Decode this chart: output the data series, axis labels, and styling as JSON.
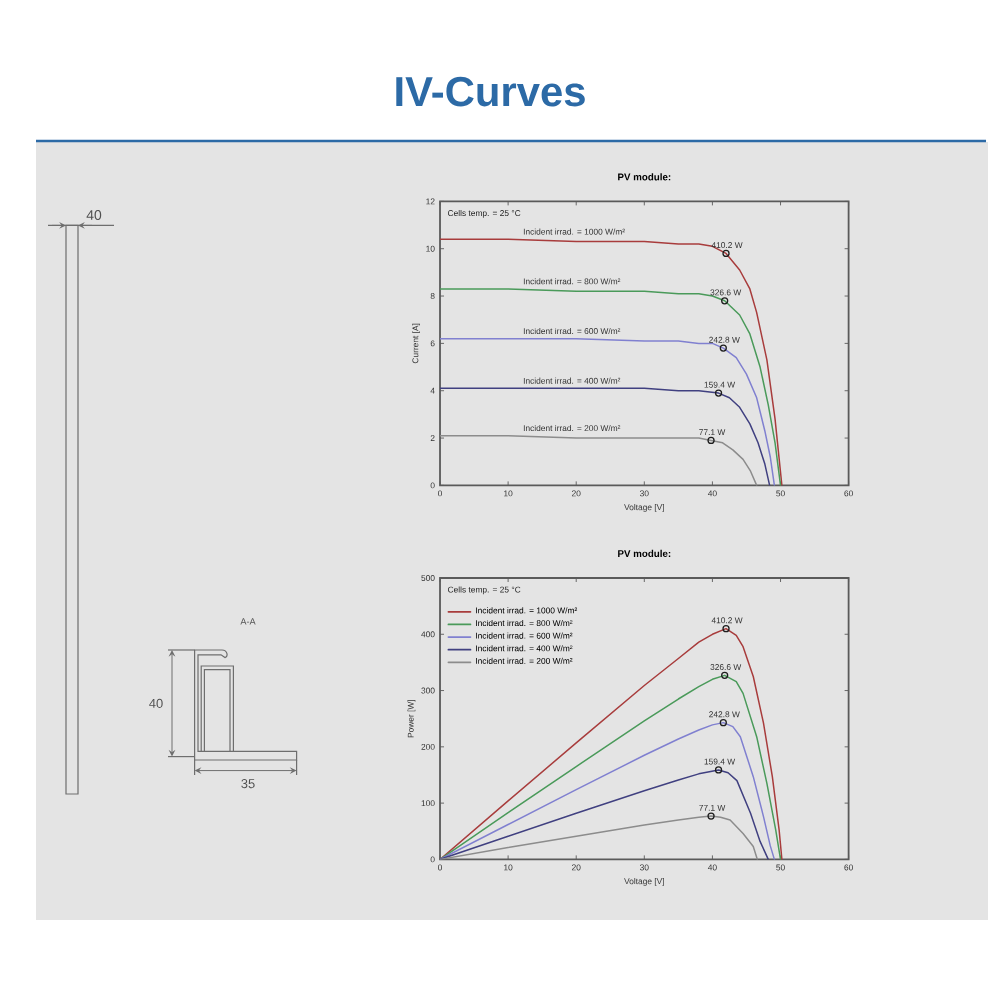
{
  "chart_data": [
    {
      "type": "other",
      "title": "IV-Curves",
      "annotations": [
        "40",
        "A-A",
        "40",
        "35"
      ]
    },
    {
      "type": "line",
      "title": "PV module:",
      "xlabel": "Voltage [V]",
      "ylabel": "Current [A]",
      "xlim": [
        0,
        60
      ],
      "xticks": [
        0,
        10,
        20,
        30,
        40,
        50,
        60
      ],
      "ylim": [
        0,
        12
      ],
      "yticks": [
        0,
        2,
        4,
        6,
        8,
        10,
        12
      ],
      "annotations": [
        "Cells temp. = 25 °C",
        {
          "text": "410.2 W",
          "x": 42.0,
          "y": 9.8
        },
        {
          "text": "326.6 W",
          "x": 41.8,
          "y": 7.8
        },
        {
          "text": "242.8 W",
          "x": 41.6,
          "y": 5.8
        },
        {
          "text": "159.4 W",
          "x": 40.9,
          "y": 3.9
        },
        {
          "text": "77.1 W",
          "x": 39.8,
          "y": 1.9
        }
      ],
      "series": [
        {
          "name": "Incident irrad. = 1000 W/m²",
          "color": "#a83c3c",
          "x": [
            0,
            10,
            20,
            30,
            35,
            38,
            40,
            42,
            44,
            45.5,
            46.5,
            48,
            49.2,
            50.2
          ],
          "values": [
            10.4,
            10.4,
            10.3,
            10.3,
            10.2,
            10.2,
            10.1,
            9.8,
            9.1,
            8.3,
            7.3,
            5.3,
            2.8,
            0
          ]
        },
        {
          "name": "Incident irrad. = 800 W/m²",
          "color": "#4a9a5a",
          "x": [
            0,
            10,
            20,
            30,
            35,
            38,
            40,
            41.8,
            44,
            45.5,
            47,
            48.2,
            49.2,
            50
          ],
          "values": [
            8.3,
            8.3,
            8.2,
            8.2,
            8.1,
            8.1,
            8.0,
            7.8,
            7.2,
            6.4,
            5.0,
            3.4,
            1.8,
            0
          ]
        },
        {
          "name": "Incident irrad. = 600 W/m²",
          "color": "#8080d0",
          "x": [
            0,
            10,
            20,
            30,
            35,
            38,
            40,
            41.6,
            43.5,
            45,
            46.5,
            47.7,
            48.5,
            49.1
          ],
          "values": [
            6.2,
            6.2,
            6.2,
            6.1,
            6.1,
            6.0,
            6.0,
            5.8,
            5.4,
            4.7,
            3.7,
            2.3,
            1.2,
            0
          ]
        },
        {
          "name": "Incident irrad. = 400 W/m²",
          "color": "#404080",
          "x": [
            0,
            10,
            20,
            30,
            35,
            38,
            40.9,
            42.5,
            44,
            45.5,
            46.7,
            47.7,
            48.4
          ],
          "values": [
            4.1,
            4.1,
            4.1,
            4.1,
            4.0,
            4.0,
            3.9,
            3.7,
            3.3,
            2.6,
            1.8,
            0.9,
            0
          ]
        },
        {
          "name": "Incident irrad. = 200 W/m²",
          "color": "#8c8c8c",
          "x": [
            0,
            10,
            20,
            30,
            35,
            38,
            39.8,
            41.5,
            43,
            44.5,
            45.6,
            46.5
          ],
          "values": [
            2.1,
            2.1,
            2.0,
            2.0,
            2.0,
            2.0,
            1.9,
            1.8,
            1.5,
            1.1,
            0.6,
            0
          ]
        },
        {
          "type": "scatter",
          "marker": "circle",
          "color": "#1e1e1e",
          "x": [
            42.0,
            41.8,
            41.6,
            40.9,
            39.8
          ],
          "values": [
            9.8,
            7.8,
            5.8,
            3.9,
            1.9
          ]
        }
      ]
    },
    {
      "type": "line",
      "title": "PV module:",
      "xlabel": "Voltage [V]",
      "ylabel": "Power [W]",
      "xlim": [
        0,
        60
      ],
      "xticks": [
        0,
        10,
        20,
        30,
        40,
        50,
        60
      ],
      "ylim": [
        0,
        500
      ],
      "yticks": [
        0,
        100,
        200,
        300,
        400,
        500
      ],
      "legend": "top left",
      "annotations": [
        "Cells temp. = 25 °C",
        {
          "text": "410.2 W",
          "x": 42.0,
          "y": 410
        },
        {
          "text": "326.6 W",
          "x": 41.8,
          "y": 327
        },
        {
          "text": "242.8 W",
          "x": 41.6,
          "y": 243
        },
        {
          "text": "159.4 W",
          "x": 40.9,
          "y": 159
        },
        {
          "text": "77.1 W",
          "x": 39.8,
          "y": 77
        }
      ],
      "series": [
        {
          "name": "Incident irrad. = 1000 W/m²",
          "color": "#a83c3c",
          "x": [
            0,
            10,
            20,
            30,
            35,
            38,
            40,
            42,
            43.5,
            44.5,
            46,
            47.5,
            48.8,
            49.8,
            50.2
          ],
          "values": [
            0,
            104,
            207,
            309,
            357,
            386,
            400,
            410,
            398,
            378,
            325,
            242,
            147,
            52,
            0
          ]
        },
        {
          "name": "Incident irrad. = 800 W/m²",
          "color": "#4a9a5a",
          "x": [
            0,
            10,
            20,
            30,
            35,
            38,
            40,
            41.8,
            43.5,
            44.5,
            46.5,
            48,
            49.3,
            50
          ],
          "values": [
            0,
            83,
            165,
            246,
            285,
            307,
            320,
            327,
            316,
            295,
            218,
            135,
            52,
            0
          ]
        },
        {
          "name": "Incident irrad. = 600 W/m²",
          "color": "#8080d0",
          "x": [
            0,
            10,
            20,
            30,
            35,
            38,
            40,
            41.6,
            43,
            44.1,
            46,
            47.5,
            48.5,
            49.1
          ],
          "values": [
            0,
            62,
            124,
            185,
            214,
            230,
            239,
            243,
            236,
            218,
            147,
            76,
            24,
            0
          ]
        },
        {
          "name": "Incident irrad. = 400 W/m²",
          "color": "#404080",
          "x": [
            0,
            10,
            20,
            30,
            35,
            38,
            40.9,
            42.3,
            43.6,
            45.6,
            47,
            48.2
          ],
          "values": [
            0,
            41,
            82,
            122,
            141,
            152,
            159,
            154,
            140,
            82,
            32,
            0
          ]
        },
        {
          "name": "Incident irrad. = 200 W/m²",
          "color": "#8c8c8c",
          "x": [
            0,
            10,
            20,
            30,
            35,
            38,
            39.8,
            41.2,
            42.6,
            44.5,
            46,
            46.6
          ],
          "values": [
            0,
            21,
            41,
            61,
            70,
            75,
            77,
            75,
            70,
            46,
            23,
            0
          ]
        },
        {
          "type": "scatter",
          "marker": "circle",
          "color": "#1e1e1e",
          "x": [
            42.0,
            41.8,
            41.6,
            40.9,
            39.8
          ],
          "values": [
            410,
            327,
            243,
            159,
            77
          ]
        }
      ]
    }
  ]
}
